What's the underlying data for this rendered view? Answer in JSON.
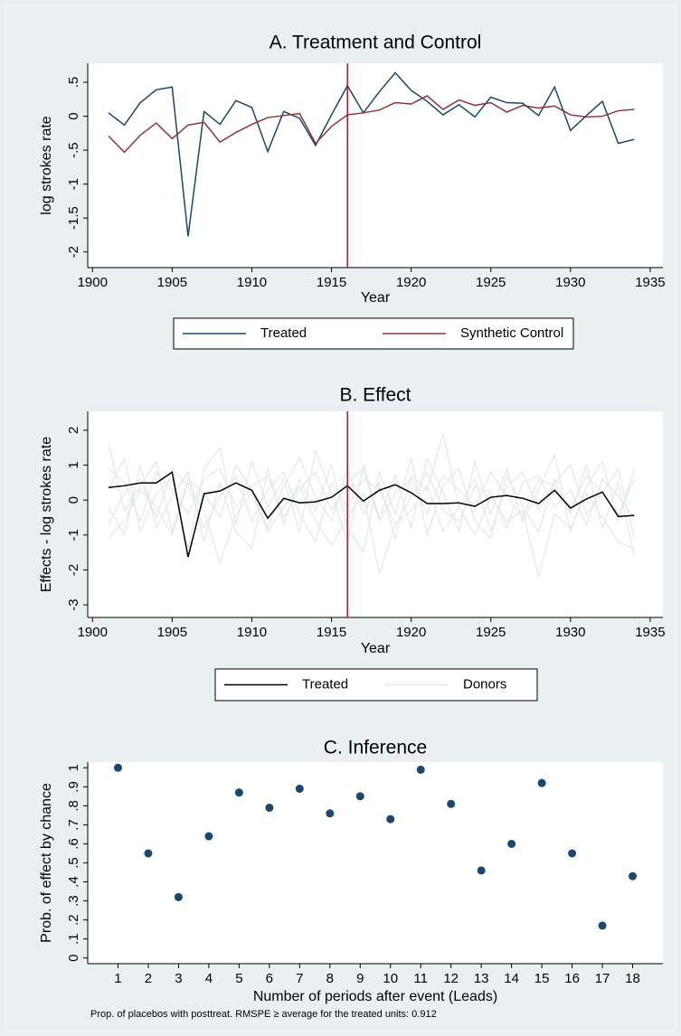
{
  "chart_data": [
    {
      "type": "line",
      "title": "A. Treatment and Control",
      "x_label": "Year",
      "y_label": "log strokes rate",
      "x": [
        1901,
        1902,
        1903,
        1904,
        1905,
        1906,
        1907,
        1908,
        1909,
        1910,
        1911,
        1912,
        1913,
        1914,
        1915,
        1916,
        1917,
        1918,
        1919,
        1920,
        1921,
        1922,
        1923,
        1924,
        1925,
        1926,
        1927,
        1928,
        1929,
        1930,
        1931,
        1932,
        1933,
        1934
      ],
      "series": [
        {
          "name": "Treated",
          "color": "#1a476f",
          "values": [
            0.05,
            -0.13,
            0.2,
            0.39,
            0.43,
            -1.77,
            0.07,
            -0.12,
            0.23,
            0.13,
            -0.52,
            0.07,
            -0.03,
            -0.43,
            0.02,
            0.45,
            0.05,
            0.36,
            0.64,
            0.38,
            0.22,
            0.02,
            0.17,
            -0.01,
            0.28,
            0.2,
            0.19,
            0.01,
            0.43,
            -0.21,
            0.01,
            0.22,
            -0.4,
            -0.34
          ]
        },
        {
          "name": "Synthetic Control",
          "color": "#90353b",
          "values": [
            -0.29,
            -0.53,
            -0.28,
            -0.1,
            -0.33,
            -0.13,
            -0.09,
            -0.38,
            -0.24,
            -0.12,
            -0.02,
            0.01,
            0.04,
            -0.4,
            -0.15,
            0.02,
            0.05,
            0.09,
            0.2,
            0.18,
            0.3,
            0.1,
            0.24,
            0.16,
            0.2,
            0.06,
            0.16,
            0.12,
            0.15,
            0.02,
            -0.01,
            0,
            0.08,
            0.1
          ]
        }
      ],
      "xlim": [
        1899.7,
        1935.8
      ],
      "xticks": [
        1900,
        1905,
        1910,
        1915,
        1920,
        1925,
        1930,
        1935
      ],
      "ylim": [
        -2.23,
        0.78
      ],
      "yticks": [
        -2,
        {
          "value": -1.5,
          "label": "-1.5"
        },
        -1,
        {
          "value": -0.5,
          "label": "-.5"
        },
        0,
        {
          "value": 0.5,
          "label": ".5"
        }
      ],
      "xline": 1916,
      "xline_color": "#b2182b",
      "legend": "bottom",
      "grid": false
    },
    {
      "type": "line",
      "title": "B. Effect",
      "x_label": "Year",
      "y_label": "Effects - log strokes rate",
      "x": [
        1901,
        1902,
        1903,
        1904,
        1905,
        1906,
        1907,
        1908,
        1909,
        1910,
        1911,
        1912,
        1913,
        1914,
        1915,
        1916,
        1917,
        1918,
        1919,
        1920,
        1921,
        1922,
        1923,
        1924,
        1925,
        1926,
        1927,
        1928,
        1929,
        1930,
        1931,
        1932,
        1933,
        1934
      ],
      "series": [
        {
          "name": "Treated",
          "color": "#000000",
          "values": [
            0.36,
            0.41,
            0.49,
            0.49,
            0.8,
            -1.63,
            0.18,
            0.26,
            0.49,
            0.28,
            -0.52,
            0.05,
            -0.08,
            -0.05,
            0.08,
            0.41,
            -0.03,
            0.28,
            0.44,
            0.21,
            -0.1,
            -0.1,
            -0.08,
            -0.18,
            0.08,
            0.13,
            0.05,
            -0.1,
            0.28,
            -0.23,
            0.03,
            0.23,
            -0.47,
            -0.44
          ]
        },
        {
          "name": "Donors",
          "color": "#dfe9e9",
          "values": [
            [
              0.9,
              0.5,
              -0.6,
              0.8,
              0.3,
              -0.4,
              0.6,
              0.9,
              -0.2,
              0.4,
              0.7,
              -0.5,
              0.3,
              0.8,
              -0.3,
              0.5,
              0.9,
              -0.6,
              0.2,
              0.6,
              -0.4,
              0.7,
              0.3,
              -0.2,
              0.8,
              0.1,
              -0.5,
              0.6,
              0.4,
              -0.3,
              0.7,
              0.2,
              -0.4,
              0.6
            ],
            [
              -0.7,
              0.2,
              0.6,
              -0.5,
              0.9,
              0.4,
              -0.8,
              0.1,
              0.7,
              -0.6,
              0.3,
              0.8,
              -0.4,
              -1.2,
              0.5,
              -0.2,
              0.6,
              0.3,
              -0.7,
              0.1,
              0.8,
              -0.3,
              -0.6,
              0.4,
              0.2,
              -0.8,
              0.5,
              0.7,
              -0.2,
              0.3,
              -0.7,
              0.6,
              0.1,
              -0.5
            ],
            [
              1.6,
              -0.3,
              0.4,
              1.1,
              -0.9,
              0.6,
              0.2,
              -0.5,
              1.0,
              0.3,
              -0.8,
              0.4,
              1.2,
              0.1,
              -0.6,
              0.9,
              -0.4,
              0.5,
              -1.1,
              0.7,
              0.3,
              1.9,
              -0.2,
              0.6,
              -0.9,
              0.4,
              0.8,
              -0.3,
              0.5,
              1.0,
              -0.4,
              0.2,
              0.9,
              -1.1
            ],
            [
              -1.1,
              -0.6,
              0.3,
              -0.2,
              -1.0,
              0.5,
              -0.3,
              -1.8,
              -0.4,
              0.2,
              -0.9,
              -0.2,
              0.4,
              -0.6,
              -1.3,
              -0.5,
              0.2,
              -2.1,
              -0.7,
              -0.3,
              0.4,
              -0.9,
              -0.2,
              -1.0,
              0.1,
              -0.6,
              -0.3,
              -2.2,
              -0.4,
              -0.8,
              0.2,
              -0.5,
              -1.2,
              -1.4
            ],
            [
              0.3,
              1.2,
              -0.9,
              0.2,
              0.6,
              -1.4,
              0.9,
              1.5,
              -0.7,
              1.1,
              -0.2,
              0.6,
              -0.9,
              1.4,
              0.2,
              -1.2,
              1.0,
              -0.5,
              0.7,
              -0.8,
              1.2,
              0.2,
              -0.9,
              1.1,
              -0.4,
              0.9,
              -0.6,
              0.3,
              1.3,
              -0.9,
              0.4,
              1.1,
              -0.6,
              0.9
            ],
            [
              -0.2,
              -1.0,
              1.0,
              -0.8,
              0.1,
              0.8,
              -1.2,
              0.5,
              -0.9,
              -1.4,
              0.9,
              -0.7,
              0.6,
              -0.3,
              1.0,
              -0.8,
              -1.5,
              0.8,
              -0.4,
              1.2,
              -1.0,
              0.4,
              0.9,
              -0.6,
              -1.1,
              0.7,
              -0.2,
              -0.9,
              0.6,
              -0.4,
              1.0,
              -0.8,
              0.5,
              -1.6
            ]
          ]
        }
      ],
      "xlim": [
        1899.7,
        1935.8
      ],
      "xticks": [
        1900,
        1905,
        1910,
        1915,
        1920,
        1925,
        1930,
        1935
      ],
      "ylim": [
        -3.36,
        2.54
      ],
      "yticks": [
        -3,
        -2,
        -1,
        0,
        1,
        2
      ],
      "xline": 1916,
      "xline_color": "#b2182b",
      "legend": "bottom",
      "grid": false
    },
    {
      "type": "scatter",
      "title": "C. Inference",
      "x_label": "Number of periods after event (Leads)",
      "y_label": "Prob. of effect by chance",
      "note": "Prop. of placebos with posttreat. RMSPE ≥ average for the treated units: 0.912",
      "x": [
        1,
        2,
        3,
        4,
        5,
        6,
        7,
        8,
        9,
        10,
        11,
        12,
        13,
        14,
        15,
        16,
        17,
        18
      ],
      "values": [
        1.0,
        0.55,
        0.32,
        0.64,
        0.87,
        0.79,
        0.89,
        0.76,
        0.85,
        0.73,
        0.99,
        0.81,
        0.46,
        0.6,
        0.92,
        0.55,
        0.17,
        0.43
      ],
      "color": "#1a476f",
      "xlim": [
        0,
        19
      ],
      "xticks": [
        1,
        2,
        3,
        4,
        5,
        6,
        7,
        8,
        9,
        10,
        11,
        12,
        13,
        14,
        15,
        16,
        17,
        18
      ],
      "ylim": [
        -0.03,
        1.03
      ],
      "yticks": [
        0,
        {
          "value": 0.1,
          "label": ".1"
        },
        {
          "value": 0.2,
          "label": ".2"
        },
        {
          "value": 0.3,
          "label": ".3"
        },
        {
          "value": 0.4,
          "label": ".4"
        },
        {
          "value": 0.5,
          "label": ".5"
        },
        {
          "value": 0.6,
          "label": ".6"
        },
        {
          "value": 0.7,
          "label": ".7"
        },
        {
          "value": 0.8,
          "label": ".8"
        },
        {
          "value": 0.9,
          "label": ".9"
        },
        1
      ],
      "grid": false
    }
  ]
}
